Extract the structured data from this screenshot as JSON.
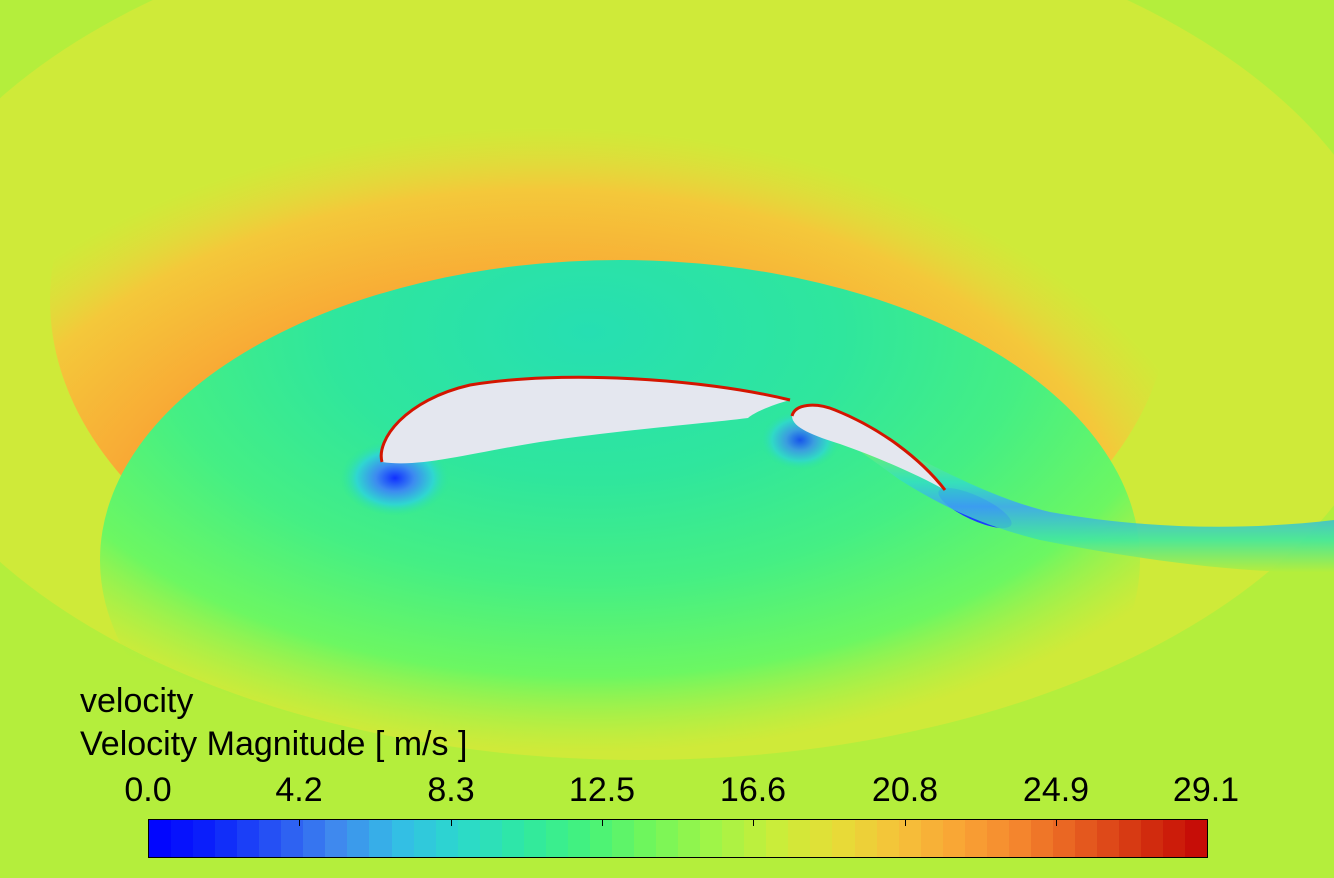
{
  "legend": {
    "variable": "velocity",
    "quantity": "Velocity Magnitude [ m/s ]",
    "tick_labels": [
      "0.0",
      "4.2",
      "8.3",
      "12.5",
      "16.6",
      "20.8",
      "24.9",
      "29.1"
    ],
    "min": 0.0,
    "max": 29.1,
    "levels": 48
  },
  "colors": {
    "freestream": "#b4ee3c",
    "suction_peak": "#c81400",
    "pressure_side": "#2ee59a",
    "stagnation": "#0a20ff",
    "airfoil_surface": "#e4e7ef"
  },
  "colormap": [
    "#0000ff",
    "#0b22fb",
    "#2652f4",
    "#3f88ee",
    "#34bde6",
    "#2bd9cc",
    "#2fe8a3",
    "#43f27d",
    "#6ff65c",
    "#9ef548",
    "#c7ee3a",
    "#e5de36",
    "#f5c23a",
    "#f9a535",
    "#f4852d",
    "#e55a1f",
    "#d3300f",
    "#c30505"
  ]
}
